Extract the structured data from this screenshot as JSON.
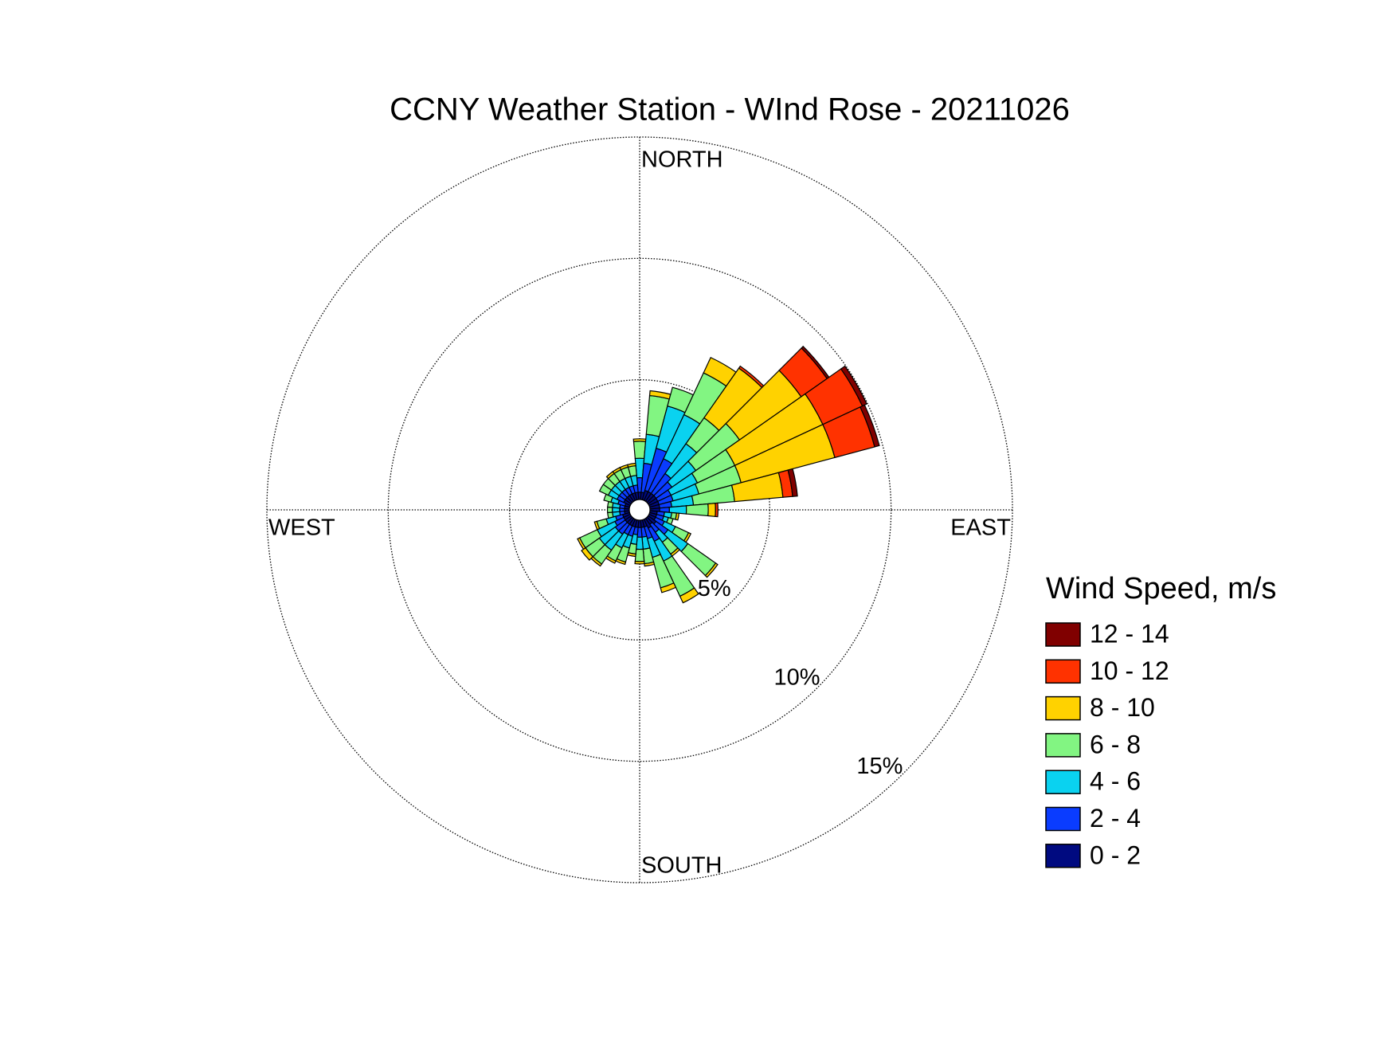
{
  "chart_data": {
    "type": "windrose",
    "title": "CCNY Weather Station - WInd Rose - 20211026",
    "direction_labels": [
      "NORTH",
      "EAST",
      "SOUTH",
      "WEST"
    ],
    "directions": [
      0,
      10,
      20,
      30,
      40,
      50,
      60,
      70,
      80,
      90,
      100,
      110,
      120,
      130,
      140,
      150,
      160,
      170,
      180,
      190,
      200,
      210,
      220,
      230,
      240,
      250,
      260,
      270,
      280,
      290,
      300,
      310,
      320,
      330,
      340,
      350
    ],
    "rlim": [
      0,
      15
    ],
    "rticks": [
      {
        "value": 5,
        "label": "5%"
      },
      {
        "value": 10,
        "label": "10%"
      },
      {
        "value": 15,
        "label": "15%"
      }
    ],
    "legend_title": "Wind Speed, m/s",
    "series": [
      {
        "name": "0 - 2",
        "color": "#000a80",
        "values": [
          0.3,
          0.3,
          0.4,
          0.4,
          0.4,
          0.4,
          0.4,
          0.4,
          0.4,
          0.4,
          0.3,
          0.3,
          0.3,
          0.4,
          0.3,
          0.4,
          0.3,
          0.3,
          0.3,
          0.3,
          0.3,
          0.3,
          0.3,
          0.3,
          0.3,
          0.3,
          0.2,
          0.2,
          0.2,
          0.2,
          0.3,
          0.3,
          0.3,
          0.3,
          0.3,
          0.3
        ]
      },
      {
        "name": "2 - 4",
        "color": "#0a3cff",
        "values": [
          0.6,
          1.2,
          1.8,
          1.5,
          1.0,
          0.8,
          0.6,
          0.6,
          0.5,
          0.4,
          0.3,
          0.3,
          0.4,
          0.6,
          0.4,
          0.6,
          0.5,
          0.4,
          0.4,
          0.3,
          0.4,
          0.4,
          0.5,
          0.5,
          0.4,
          0.3,
          0.2,
          0.2,
          0.2,
          0.3,
          0.3,
          0.3,
          0.3,
          0.3,
          0.3,
          0.3
        ]
      },
      {
        "name": "4 - 6",
        "color": "#0ad2f0",
        "values": [
          0.8,
          1.2,
          1.8,
          2.0,
          1.5,
          1.2,
          1.2,
          1.1,
          0.9,
          0.7,
          0.3,
          0.2,
          0.5,
          1.0,
          0.5,
          0.9,
          0.8,
          0.5,
          0.5,
          0.4,
          0.5,
          0.6,
          0.8,
          0.8,
          0.8,
          0.4,
          0.3,
          0.3,
          0.3,
          0.3,
          0.4,
          0.4,
          0.4,
          0.4,
          0.4,
          0.4
        ]
      },
      {
        "name": "6 - 8",
        "color": "#82f582",
        "values": [
          0.7,
          1.6,
          0.8,
          1.9,
          1.3,
          2.2,
          1.7,
          1.8,
          1.7,
          0.9,
          0.2,
          0.2,
          0.6,
          1.4,
          0.6,
          1.6,
          1.3,
          0.6,
          0.5,
          0.4,
          0.6,
          0.6,
          0.7,
          0.7,
          0.8,
          0.4,
          0.2,
          0.2,
          0.2,
          0.3,
          0.4,
          0.4,
          0.4,
          0.4,
          0.4,
          0.4
        ]
      },
      {
        "name": "8 - 10",
        "color": "#ffd200",
        "values": [
          0.1,
          0.2,
          0,
          0.7,
          2.5,
          3.1,
          4.0,
          4.0,
          2.0,
          0.3,
          0.1,
          0,
          0.1,
          0.1,
          0.1,
          0.3,
          0.2,
          0.1,
          0.1,
          0.1,
          0.1,
          0.1,
          0.1,
          0.2,
          0.1,
          0.1,
          0,
          0,
          0,
          0,
          0,
          0,
          0.1,
          0.1,
          0.1,
          0.1
        ]
      },
      {
        "name": "10 - 12",
        "color": "#ff3200",
        "values": [
          0,
          0,
          0,
          0,
          0.1,
          1.3,
          1.8,
          1.7,
          0.4,
          0.1,
          0,
          0,
          0,
          0,
          0,
          0,
          0,
          0,
          0,
          0,
          0,
          0,
          0,
          0,
          0,
          0,
          0,
          0,
          0,
          0,
          0,
          0,
          0,
          0,
          0,
          0
        ]
      },
      {
        "name": "12 - 14",
        "color": "#800000",
        "values": [
          0,
          0,
          0,
          0,
          0,
          0.1,
          0.2,
          0.2,
          0.2,
          0,
          0,
          0,
          0,
          0,
          0,
          0,
          0,
          0,
          0,
          0,
          0,
          0,
          0,
          0,
          0,
          0,
          0,
          0,
          0,
          0,
          0,
          0,
          0,
          0,
          0,
          0
        ]
      }
    ]
  }
}
